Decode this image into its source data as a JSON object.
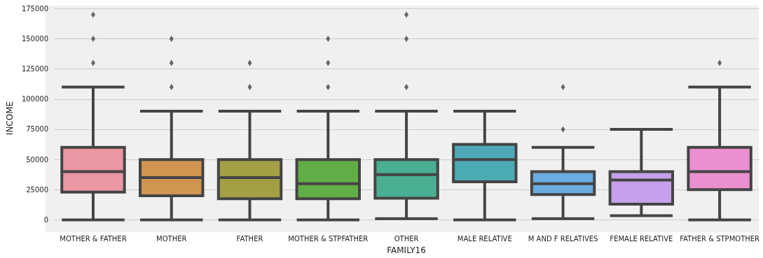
{
  "chart_data": {
    "type": "box",
    "xlabel": "FAMILY16",
    "ylabel": "INCOME",
    "categories": [
      "MOTHER & FATHER",
      "MOTHER",
      "FATHER",
      "MOTHER & STPFATHER",
      "OTHER",
      "MALE RELATIVE",
      "M AND F RELATIVES",
      "FEMALE RELATIVE",
      "FATHER & STPMOTHER"
    ],
    "colors": [
      "#ea96a3",
      "#d09550",
      "#a39f45",
      "#62ae46",
      "#4aae92",
      "#4dabb6",
      "#6aace0",
      "#c6a0ea",
      "#ea8fcf"
    ],
    "boxes": [
      {
        "low": 0,
        "q1": 23000,
        "median": 40000,
        "q3": 60000,
        "high": 110000,
        "outliers": [
          130000,
          150000,
          170000
        ]
      },
      {
        "low": 0,
        "q1": 20000,
        "median": 35000,
        "q3": 50000,
        "high": 90000,
        "outliers": [
          110000,
          130000,
          150000
        ]
      },
      {
        "low": 0,
        "q1": 17500,
        "median": 35000,
        "q3": 50000,
        "high": 90000,
        "outliers": [
          110000,
          130000
        ]
      },
      {
        "low": 0,
        "q1": 17500,
        "median": 30000,
        "q3": 50000,
        "high": 90000,
        "outliers": [
          110000,
          130000,
          150000
        ]
      },
      {
        "low": 1000,
        "q1": 18000,
        "median": 37500,
        "q3": 50000,
        "high": 90000,
        "outliers": [
          110000,
          150000,
          170000
        ]
      },
      {
        "low": 0,
        "q1": 31500,
        "median": 50000,
        "q3": 62500,
        "high": 90000
      },
      {
        "low": 1000,
        "q1": 21000,
        "median": 30000,
        "q3": 40000,
        "high": 60000,
        "outliers": [
          75000,
          110000
        ]
      },
      {
        "low": 3500,
        "q1": 13000,
        "median": 33000,
        "q3": 40000,
        "high": 75000
      },
      {
        "low": 0,
        "q1": 25000,
        "median": 40000,
        "q3": 60000,
        "high": 110000,
        "outliers": [
          130000
        ]
      }
    ],
    "ylim": [
      -9000,
      177500
    ],
    "yticks": [
      0,
      25000,
      50000,
      75000,
      100000,
      125000,
      150000,
      175000
    ],
    "grid": "y",
    "marker": "diamond"
  }
}
